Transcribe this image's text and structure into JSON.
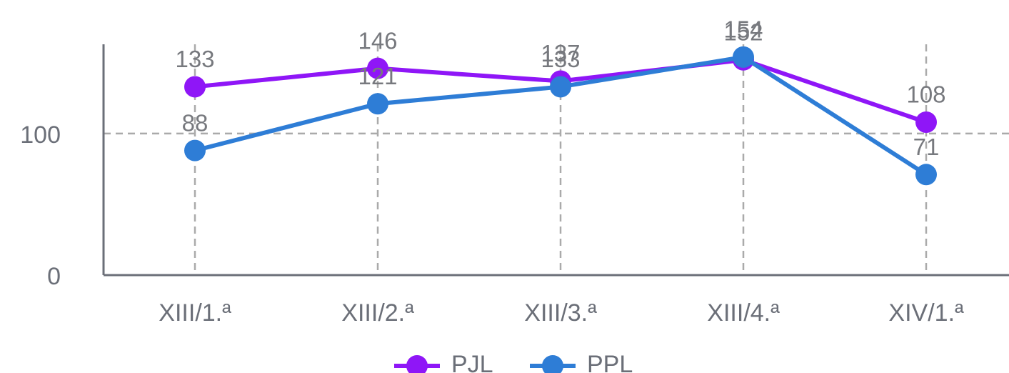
{
  "chart_data": {
    "type": "line",
    "categories": [
      "XIII/1.ª",
      "XIII/2.ª",
      "XIII/3.ª",
      "XIII/4.ª",
      "XIV/1.ª"
    ],
    "series": [
      {
        "name": "PJL",
        "color": "#8f16f7",
        "values": [
          133,
          146,
          137,
          152,
          108
        ]
      },
      {
        "name": "PPL",
        "color": "#2e7dd6",
        "values": [
          88,
          121,
          133,
          154,
          71
        ]
      }
    ],
    "ylim": [
      0,
      163
    ],
    "yticks": [
      0,
      100
    ],
    "grid": true,
    "legend": "bottom"
  }
}
